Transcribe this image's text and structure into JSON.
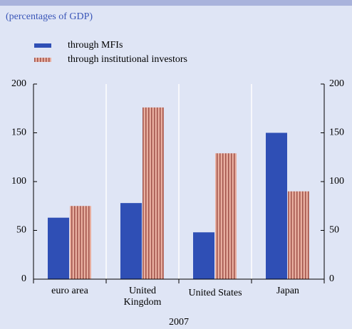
{
  "chart_data": {
    "type": "bar",
    "subtitle": "(percentages of GDP)",
    "categories": [
      "euro area",
      "United Kingdom",
      "United States",
      "Japan"
    ],
    "series": [
      {
        "name": "through MFIs",
        "color": "#2f4fb5",
        "values": [
          63,
          78,
          48,
          150
        ]
      },
      {
        "name": "through institutional investors",
        "color": "#e3a395",
        "values": [
          75,
          176,
          129,
          90
        ]
      }
    ],
    "xlabel": "2007",
    "ylim": [
      0,
      200
    ],
    "yticks": [
      0,
      50,
      100,
      150,
      200
    ],
    "y2lim": [
      0,
      200
    ],
    "y2ticks": [
      0,
      50,
      100,
      150,
      200
    ]
  }
}
